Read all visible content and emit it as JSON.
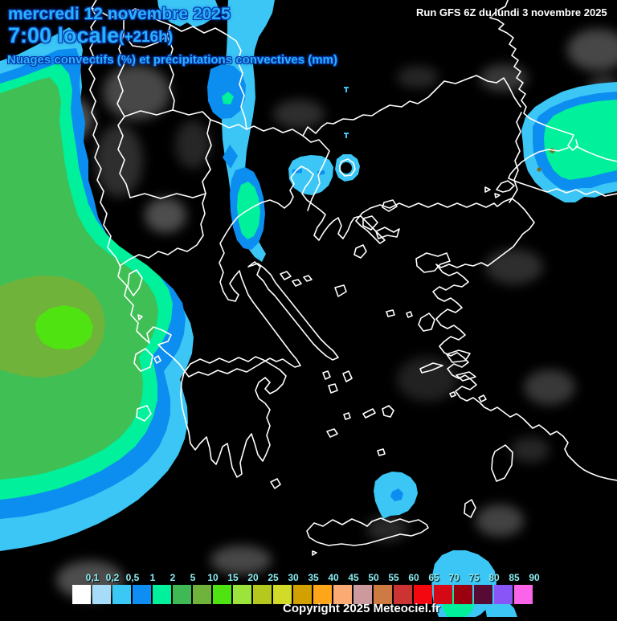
{
  "header": {
    "date_line": "mercredi 12 novembre 2025",
    "time_line": "7:00 locale",
    "forecast_offset": "(+216h)",
    "run_info": "Run GFS 6Z du lundi 3 novembre 2025",
    "subtitle": "Nuages convectifs (%) et précipitations convectives (mm)"
  },
  "footer": {
    "copyright": "Copyright 2025 Meteociel.fr"
  },
  "legend": {
    "unit_values_mm": [
      "0,1",
      "0,2",
      "0,5",
      "1",
      "2",
      "5",
      "10",
      "15",
      "20",
      "25",
      "30",
      "35",
      "40",
      "45",
      "50",
      "55",
      "60",
      "65",
      "70",
      "75",
      "80",
      "85",
      "90"
    ],
    "colors": [
      "#ffffff",
      "#a6dcf7",
      "#3cc8f5",
      "#0e8df2",
      "#00f09b",
      "#3eb954",
      "#6fb33a",
      "#4fe312",
      "#9ce43c",
      "#b4c81e",
      "#d2dc28",
      "#d2a000",
      "#ffa519",
      "#fcaa73",
      "#cc9a9e",
      "#cd7b42",
      "#cc3333",
      "#f5070f",
      "#d40915",
      "#9b000f",
      "#570a33",
      "#8a55f7",
      "#fa64e8"
    ]
  },
  "colors": {
    "title_accent": "#29b2f9",
    "title_outline": "#0633a8",
    "legend_label": "#8ceef2",
    "run_text": "#ffffff",
    "copyright_text": "#ffffff"
  },
  "map": {
    "palette": {
      "background": "#000000",
      "coastline": "#ffffff",
      "cloud_gray": "#ffffff",
      "precip_cyan": "#3bc6f5",
      "precip_blue": "#0b8ef0",
      "precip_spring": "#00f09b",
      "precip_green": "#40bf55",
      "precip_moss": "#6fb33a",
      "precip_bright": "#4fe312",
      "speck_olive": "#7c6a1e"
    }
  }
}
